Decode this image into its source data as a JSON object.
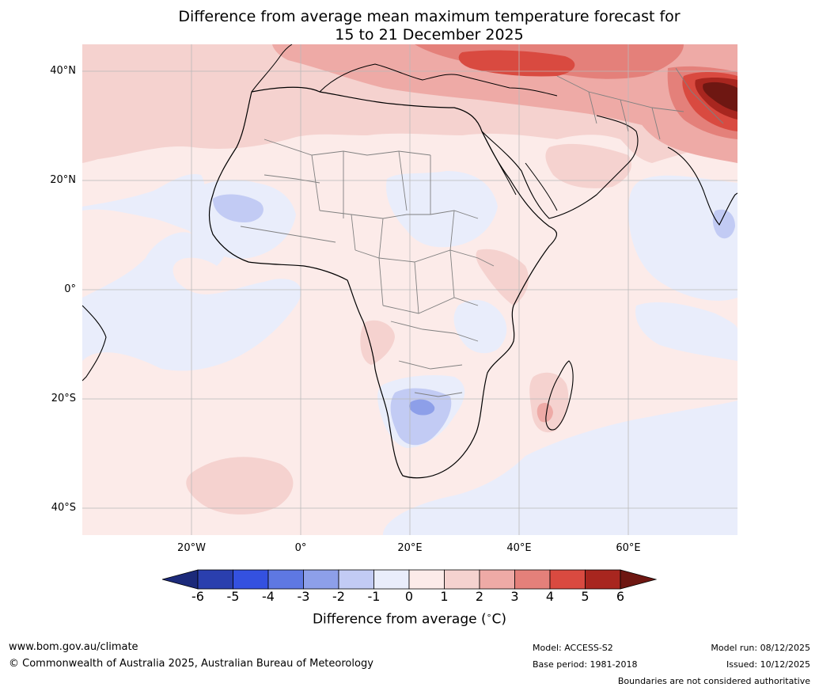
{
  "title": {
    "line1": "Difference from average mean maximum temperature forecast for",
    "line2": "15 to 21 December 2025"
  },
  "map": {
    "region": "Africa",
    "lat_labels": [
      "40°N",
      "20°N",
      "0°",
      "20°S",
      "40°S"
    ],
    "lon_labels": [
      "20°W",
      "0°",
      "20°E",
      "40°E",
      "60°E"
    ],
    "lat_range": [
      -45,
      45
    ],
    "lon_range": [
      -40,
      80
    ],
    "anomaly_regions": [
      {
        "name": "southern-africa-cool",
        "range": "-1 to -3"
      },
      {
        "name": "sahel-cool",
        "range": "-1 to -2"
      },
      {
        "name": "central-africa-cool",
        "range": "0 to -1"
      },
      {
        "name": "middle-east-warm",
        "range": "2 to 6"
      },
      {
        "name": "north-africa-warm",
        "range": "1 to 3"
      },
      {
        "name": "madagascar-warm",
        "range": "1 to 3"
      },
      {
        "name": "south-atlantic-warm",
        "range": "1 to 2"
      }
    ]
  },
  "colorbar": {
    "ticks": [
      "-6",
      "-5",
      "-4",
      "-3",
      "-2",
      "-1",
      "0",
      "1",
      "2",
      "3",
      "4",
      "5",
      "6"
    ],
    "colors": [
      "#1c2a7a",
      "#2a3fae",
      "#3451e0",
      "#5e78e2",
      "#8d9fe9",
      "#c2cbf4",
      "#e9edfb",
      "#fcebe9",
      "#f5d2cf",
      "#eeaaa6",
      "#e4807a",
      "#d94a40",
      "#a8261f",
      "#6e1712"
    ],
    "label": "Difference from average (",
    "label_unit": "C)",
    "degree_symbol": "∘"
  },
  "footer": {
    "url": "www.bom.gov.au/climate",
    "copyright": "© Commonwealth of Australia 2025, Australian Bureau of Meteorology",
    "model": "Model: ACCESS-S2",
    "base_period": "Base period: 1981-2018",
    "model_run": "Model run: 08/12/2025",
    "issued": "Issued: 10/12/2025",
    "disclaimer": "Boundaries are not considered authoritative"
  }
}
